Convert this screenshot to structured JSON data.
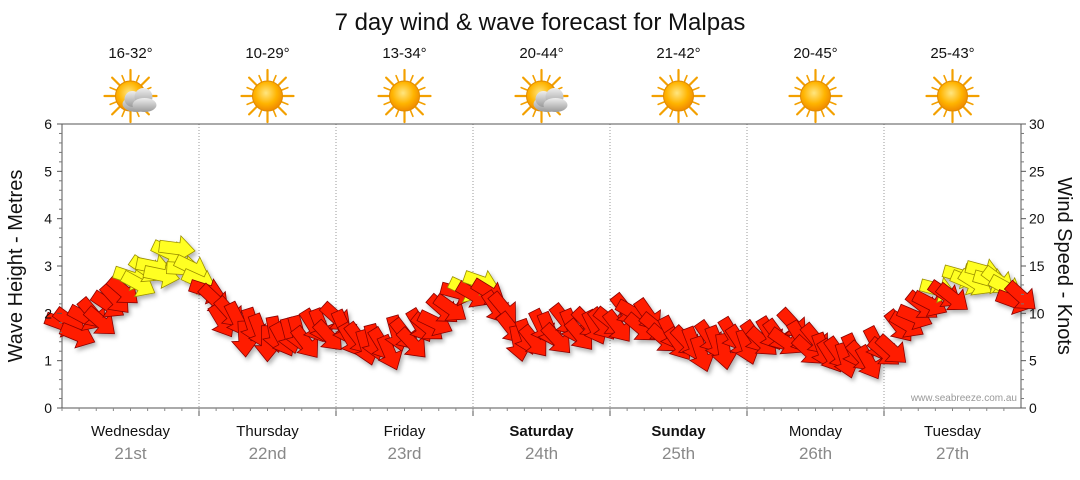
{
  "chart_data": {
    "type": "line",
    "title": "7 day wind & wave forecast for Malpas",
    "ylabel_left": "Wave Height - Metres",
    "ylabel_right": "Wind Speed - Knots",
    "ylim_left": [
      0,
      6
    ],
    "ylim_right": [
      0,
      30
    ],
    "yticks_left": [
      "0",
      "1",
      "2",
      "3",
      "4",
      "5",
      "6"
    ],
    "yticks_right": [
      "0",
      "5",
      "10",
      "15",
      "20",
      "25",
      "30"
    ],
    "grid": true,
    "watermark": "www.seabreeze.com.au",
    "days": [
      {
        "name": "Wednesday",
        "date": "21st",
        "temp": "16-32°",
        "icon": "sun-cloud-icon",
        "bold": false
      },
      {
        "name": "Thursday",
        "date": "22nd",
        "temp": "10-29°",
        "icon": "sun-icon",
        "bold": false
      },
      {
        "name": "Friday",
        "date": "23rd",
        "temp": "13-34°",
        "icon": "sun-icon",
        "bold": false
      },
      {
        "name": "Saturday",
        "date": "24th",
        "temp": "20-44°",
        "icon": "sun-cloud-icon",
        "bold": true
      },
      {
        "name": "Sunday",
        "date": "25th",
        "temp": "21-42°",
        "icon": "sun-icon",
        "bold": true
      },
      {
        "name": "Monday",
        "date": "26th",
        "temp": "20-45°",
        "icon": "sun-icon",
        "bold": false
      },
      {
        "name": "Tuesday",
        "date": "27th",
        "temp": "25-43°",
        "icon": "sun-icon",
        "bold": false
      }
    ],
    "series": [
      {
        "x_days": [
          0.0,
          0.17,
          0.33,
          0.5,
          0.67,
          0.83,
          1.0,
          1.17,
          1.33,
          1.5,
          1.67,
          1.83,
          2.0,
          2.17,
          2.33,
          2.5,
          2.67,
          2.83,
          3.0,
          3.17,
          3.33,
          3.5,
          3.67,
          3.83,
          4.0,
          4.17,
          4.33,
          4.5,
          4.67,
          4.83,
          5.0,
          5.17,
          5.33,
          5.5,
          5.67,
          5.83,
          6.0,
          6.17,
          6.33,
          6.5,
          6.67,
          6.83,
          7.0
        ],
        "wind_knots": [
          8.5,
          9.0,
          10.5,
          13.5,
          14.5,
          16.5,
          13.5,
          10.0,
          8.5,
          7.5,
          7.5,
          8.0,
          9.0,
          7.0,
          6.5,
          7.5,
          8.5,
          11.0,
          13.0,
          11.5,
          7.0,
          8.0,
          8.5,
          8.5,
          9.0,
          10.0,
          8.5,
          7.0,
          6.5,
          7.0,
          7.0,
          7.5,
          8.0,
          6.5,
          5.5,
          5.5,
          6.0,
          9.0,
          11.5,
          12.5,
          14.0,
          13.5,
          11.0
        ],
        "wind_dir_deg": [
          200,
          215,
          225,
          210,
          200,
          190,
          200,
          230,
          255,
          260,
          250,
          240,
          230,
          245,
          250,
          240,
          220,
          210,
          200,
          225,
          250,
          240,
          235,
          235,
          230,
          220,
          225,
          235,
          245,
          250,
          240,
          230,
          225,
          235,
          245,
          240,
          230,
          215,
          205,
          210,
          200,
          205,
          215
        ]
      }
    ]
  }
}
